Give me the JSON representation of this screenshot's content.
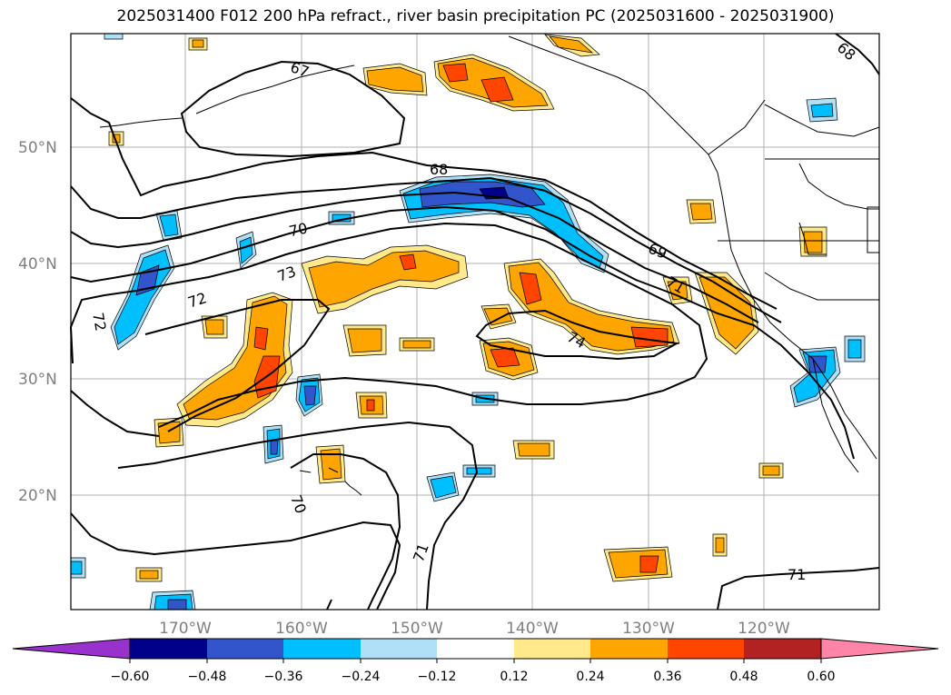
{
  "title": "2025031400 F012 200 hPa refract., river basin precipitation PC (2025031600 - 2025031900)",
  "lat_labels": [
    "50°N",
    "40°N",
    "30°N",
    "20°N"
  ],
  "lon_labels": [
    "170°W",
    "160°W",
    "150°W",
    "140°W",
    "130°W",
    "120°W"
  ],
  "contour_labels": [
    "67",
    "68",
    "68",
    "69",
    "70",
    "70",
    "71",
    "71",
    "71",
    "72",
    "72",
    "73",
    "74"
  ],
  "colorbar": {
    "ticks": [
      "−0.60",
      "−0.48",
      "−0.36",
      "−0.24",
      "−0.12",
      "0.12",
      "0.24",
      "0.36",
      "0.48",
      "0.60"
    ],
    "colors": [
      "#9932cc",
      "#00008b",
      "#3355cc",
      "#00bfff",
      "#b0e0f8",
      "#ffffff",
      "#ffe98a",
      "#ffa500",
      "#ff4500",
      "#b22222",
      "#ff85a8"
    ]
  }
}
